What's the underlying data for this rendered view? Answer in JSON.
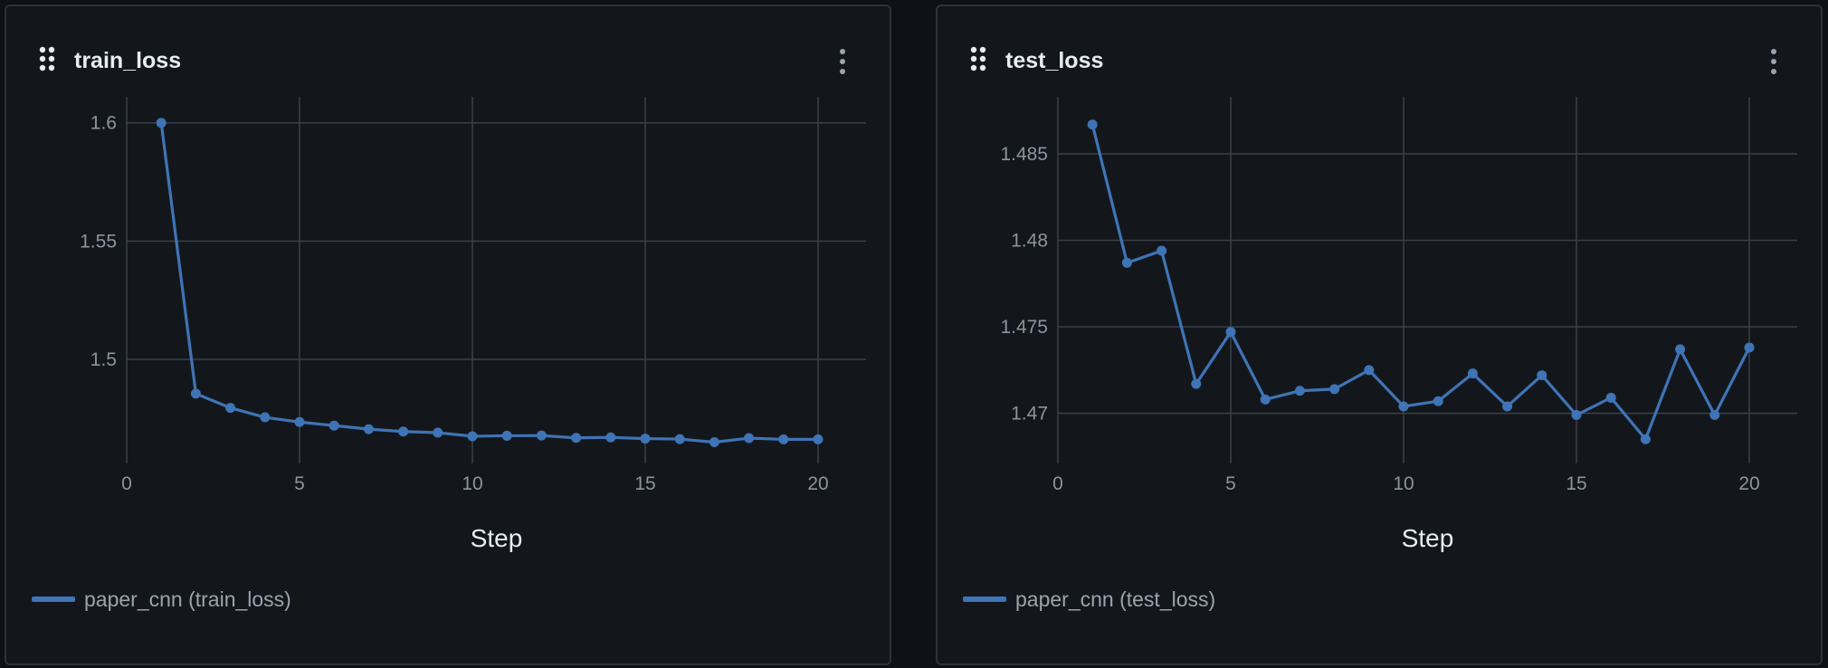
{
  "line_color": "#3f74b6",
  "panels": [
    {
      "title": "train_loss",
      "drag_icon": "drag-handle-icon",
      "menu_icon": "kebab-menu-icon",
      "legend": "paper_cnn (train_loss)"
    },
    {
      "title": "test_loss",
      "drag_icon": "drag-handle-icon",
      "menu_icon": "kebab-menu-icon",
      "legend": "paper_cnn (test_loss)"
    }
  ],
  "chart_data": [
    {
      "type": "line",
      "title": "train_loss",
      "xlabel": "Step",
      "ylabel": "",
      "xlim": [
        0,
        21
      ],
      "ylim": [
        1.456,
        1.611
      ],
      "xticks": [
        0,
        5,
        10,
        15,
        20
      ],
      "yticks": [
        1.5,
        1.55,
        1.6
      ],
      "ytick_labels": [
        "1.5",
        "1.55",
        "1.6"
      ],
      "grid": true,
      "legend_position": "bottom-left",
      "series": [
        {
          "name": "paper_cnn (train_loss)",
          "color": "#3f74b6",
          "x": [
            1,
            2,
            3,
            4,
            5,
            6,
            7,
            8,
            9,
            10,
            11,
            12,
            13,
            14,
            15,
            16,
            17,
            18,
            19,
            20
          ],
          "y": [
            1.6,
            1.4855,
            1.4795,
            1.4755,
            1.4735,
            1.472,
            1.4705,
            1.4695,
            1.469,
            1.4675,
            1.4677,
            1.4678,
            1.4668,
            1.467,
            1.4665,
            1.4663,
            1.465,
            1.4667,
            1.4662,
            1.4662
          ]
        }
      ]
    },
    {
      "type": "line",
      "title": "test_loss",
      "xlabel": "Step",
      "ylabel": "",
      "xlim": [
        0,
        21
      ],
      "ylim": [
        1.4671,
        1.4883
      ],
      "xticks": [
        0,
        5,
        10,
        15,
        20
      ],
      "yticks": [
        1.47,
        1.475,
        1.48,
        1.485
      ],
      "ytick_labels": [
        "1.47",
        "1.475",
        "1.48",
        "1.485"
      ],
      "grid": true,
      "legend_position": "bottom-left",
      "series": [
        {
          "name": "paper_cnn (test_loss)",
          "color": "#3f74b6",
          "x": [
            1,
            2,
            3,
            4,
            5,
            6,
            7,
            8,
            9,
            10,
            11,
            12,
            13,
            14,
            15,
            16,
            17,
            18,
            19,
            20
          ],
          "y": [
            1.4867,
            1.4787,
            1.4794,
            1.4717,
            1.4747,
            1.4708,
            1.4713,
            1.4714,
            1.4725,
            1.4704,
            1.4707,
            1.4723,
            1.4704,
            1.4722,
            1.4699,
            1.4709,
            1.4685,
            1.4737,
            1.4699,
            1.4738
          ]
        }
      ]
    }
  ]
}
